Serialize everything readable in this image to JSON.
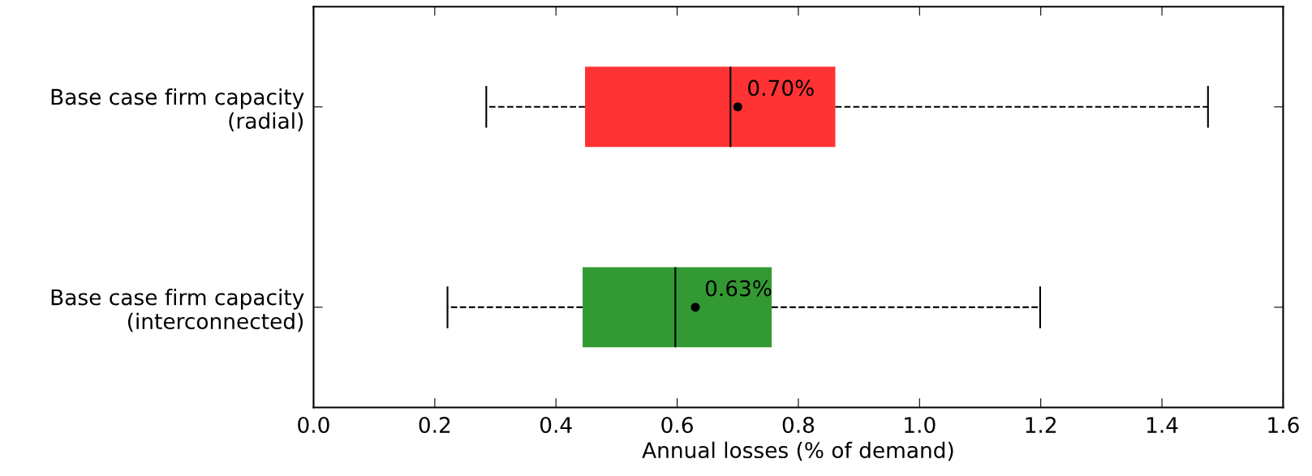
{
  "chart_data": {
    "type": "box",
    "orientation": "horizontal",
    "xlabel": "Annual losses (% of demand)",
    "categories": [
      "Base case firm capacity\n(radial)",
      "Base case firm capacity\n(interconnected)"
    ],
    "boxes": [
      {
        "low": 0.285,
        "q1": 0.448,
        "median": 0.688,
        "q3": 0.861,
        "high": 1.476,
        "mean": 0.7
      },
      {
        "low": 0.221,
        "q1": 0.444,
        "median": 0.597,
        "q3": 0.756,
        "high": 1.199,
        "mean": 0.63
      }
    ],
    "colors": [
      "#ff3333",
      "#339933"
    ],
    "xlim": [
      0.0,
      1.6
    ],
    "xticks": [
      {
        "value": 0.0,
        "label": "0.0"
      },
      0.2,
      0.4,
      0.6,
      0.8,
      {
        "value": 1.0,
        "label": "1.0"
      },
      1.2,
      1.4,
      1.6
    ],
    "annotations": [
      "0.70%",
      "0.63%"
    ],
    "grid": false,
    "line_style": "dashed"
  }
}
